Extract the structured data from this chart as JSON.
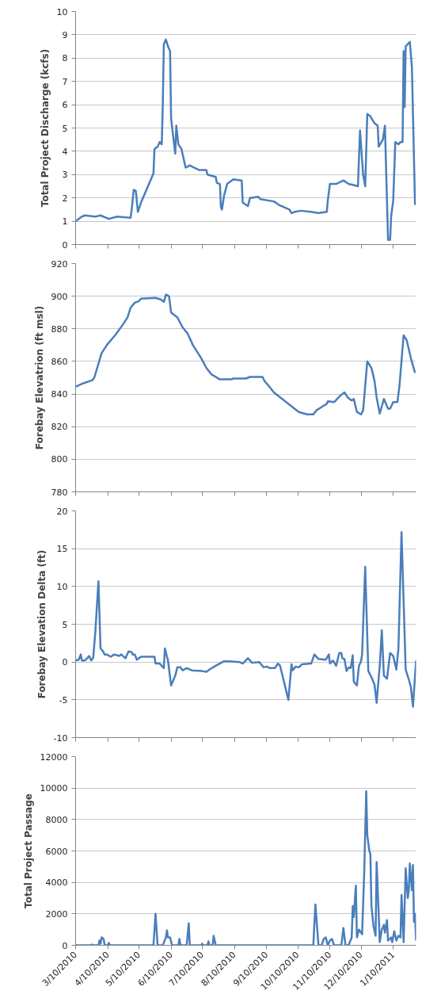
{
  "chart_data": [
    {
      "type": "line",
      "ylabel": "Total Project Discharge (kcfs)",
      "xlim": [
        "2010-03-10",
        "2011-02-01"
      ],
      "ylim": [
        0,
        10
      ],
      "yticks": [
        0,
        1,
        2,
        3,
        4,
        5,
        6,
        7,
        8,
        9,
        10
      ],
      "xticks": [
        {
          "value": "2010-03-10",
          "label": null
        },
        {
          "value": "2010-04-10",
          "label": null
        },
        {
          "value": "2010-05-10",
          "label": null
        },
        {
          "value": "2010-06-10",
          "label": null
        },
        {
          "value": "2010-07-10",
          "label": null
        },
        {
          "value": "2010-08-10",
          "label": null
        },
        {
          "value": "2010-09-10",
          "label": null
        },
        {
          "value": "2010-10-10",
          "label": null
        },
        {
          "value": "2010-11-10",
          "label": null
        },
        {
          "value": "2010-12-10",
          "label": null
        },
        {
          "value": "2011-01-10",
          "label": null
        }
      ],
      "tick_labels": "y",
      "grid": "y",
      "marker": "none",
      "line_style": "solid",
      "series": [
        {
          "color": "#4a7ebb",
          "x": [
            "2010-03-10",
            "2010-03-16",
            "2010-03-19",
            "2010-03-29",
            "2010-04-03",
            "2010-04-11",
            "2010-04-19",
            "2010-05-02",
            "2010-05-03",
            "2010-05-05",
            "2010-05-07",
            "2010-05-09",
            "2010-05-12",
            "2010-05-24",
            "2010-05-25",
            "2010-05-28",
            "2010-05-30",
            "2010-06-01",
            "2010-06-02",
            "2010-06-03",
            "2010-06-05",
            "2010-06-07",
            "2010-06-09",
            "2010-06-10",
            "2010-06-14",
            "2010-06-15",
            "2010-06-17",
            "2010-06-20",
            "2010-06-24",
            "2010-06-28",
            "2010-07-02",
            "2010-07-07",
            "2010-07-14",
            "2010-07-15",
            "2010-07-23",
            "2010-07-24",
            "2010-07-27",
            "2010-07-28",
            "2010-07-29",
            "2010-07-31",
            "2010-08-03",
            "2010-08-06",
            "2010-08-09",
            "2010-08-17",
            "2010-08-18",
            "2010-08-23",
            "2010-08-25",
            "2010-09-02",
            "2010-09-04",
            "2010-09-17",
            "2010-09-22",
            "2010-10-02",
            "2010-10-04",
            "2010-10-07",
            "2010-10-13",
            "2010-10-23",
            "2010-10-30",
            "2010-11-07",
            "2010-11-08",
            "2010-11-10",
            "2010-11-11",
            "2010-11-16",
            "2010-11-23",
            "2010-11-28",
            "2010-12-03",
            "2010-12-07",
            "2010-12-09",
            "2010-12-12",
            "2010-12-14",
            "2010-12-16",
            "2010-12-19",
            "2010-12-23",
            "2010-12-26",
            "2010-12-27",
            "2010-12-31",
            "2011-01-02",
            "2011-01-05",
            "2011-01-07",
            "2011-01-08",
            "2011-01-10",
            "2011-01-12",
            "2011-01-15",
            "2011-01-17",
            "2011-01-19",
            "2011-01-20",
            "2011-01-21",
            "2011-01-22",
            "2011-01-26",
            "2011-01-28",
            "2011-01-31"
          ],
          "values": [
            1.0,
            1.2,
            1.25,
            1.2,
            1.25,
            1.1,
            1.2,
            1.15,
            1.5,
            2.35,
            2.3,
            1.4,
            1.8,
            3.05,
            4.1,
            4.2,
            4.4,
            4.3,
            6.0,
            8.6,
            8.8,
            8.5,
            8.3,
            5.4,
            3.9,
            5.1,
            4.3,
            4.1,
            3.3,
            3.4,
            3.3,
            3.2,
            3.2,
            3.0,
            2.9,
            2.65,
            2.6,
            1.6,
            1.5,
            2.1,
            2.6,
            2.7,
            2.8,
            2.75,
            1.8,
            1.65,
            2.0,
            2.05,
            1.95,
            1.85,
            1.7,
            1.5,
            1.35,
            1.4,
            1.45,
            1.4,
            1.35,
            1.4,
            1.9,
            2.6,
            2.6,
            2.6,
            2.75,
            2.6,
            2.55,
            2.5,
            4.9,
            3.0,
            2.5,
            5.6,
            5.5,
            5.2,
            5.1,
            4.2,
            4.5,
            5.1,
            0.2,
            0.2,
            1.2,
            1.9,
            4.4,
            4.3,
            4.4,
            4.4,
            8.3,
            5.9,
            8.5,
            8.7,
            7.6,
            1.7
          ]
        }
      ]
    },
    {
      "type": "line",
      "ylabel": "Forebay Elevatrion (ft msl)",
      "xlim": [
        "2010-03-10",
        "2011-02-01"
      ],
      "ylim": [
        780,
        920
      ],
      "yticks": [
        780,
        800,
        820,
        840,
        860,
        880,
        900,
        920
      ],
      "xticks": [
        {
          "value": "2010-03-10",
          "label": null
        },
        {
          "value": "2010-04-10",
          "label": null
        },
        {
          "value": "2010-05-10",
          "label": null
        },
        {
          "value": "2010-06-10",
          "label": null
        },
        {
          "value": "2010-07-10",
          "label": null
        },
        {
          "value": "2010-08-10",
          "label": null
        },
        {
          "value": "2010-09-10",
          "label": null
        },
        {
          "value": "2010-10-10",
          "label": null
        },
        {
          "value": "2010-11-10",
          "label": null
        },
        {
          "value": "2010-12-10",
          "label": null
        },
        {
          "value": "2011-01-10",
          "label": null
        }
      ],
      "tick_labels": "y",
      "grid": "y",
      "marker": "none",
      "line_style": "solid",
      "series": [
        {
          "color": "#4a7ebb",
          "x": [
            "2010-03-10",
            "2010-03-17",
            "2010-03-26",
            "2010-03-28",
            "2010-04-04",
            "2010-04-09",
            "2010-04-17",
            "2010-04-25",
            "2010-04-29",
            "2010-05-02",
            "2010-05-06",
            "2010-05-10",
            "2010-05-12",
            "2010-05-26",
            "2010-05-31",
            "2010-06-03",
            "2010-06-05",
            "2010-06-08",
            "2010-06-10",
            "2010-06-16",
            "2010-06-21",
            "2010-06-26",
            "2010-07-01",
            "2010-07-09",
            "2010-07-14",
            "2010-07-19",
            "2010-07-27",
            "2010-08-07",
            "2010-08-09",
            "2010-08-21",
            "2010-08-25",
            "2010-09-06",
            "2010-09-08",
            "2010-09-12",
            "2010-09-17",
            "2010-09-25",
            "2010-10-03",
            "2010-10-11",
            "2010-10-19",
            "2010-10-25",
            "2010-10-28",
            "2010-11-02",
            "2010-11-07",
            "2010-11-08",
            "2010-11-14",
            "2010-11-20",
            "2010-11-24",
            "2010-11-27",
            "2010-12-01",
            "2010-12-03",
            "2010-12-06",
            "2010-12-10",
            "2010-12-12",
            "2010-12-16",
            "2010-12-20",
            "2010-12-23",
            "2010-12-25",
            "2010-12-28",
            "2011-01-01",
            "2011-01-05",
            "2011-01-07",
            "2011-01-10",
            "2011-01-14",
            "2011-01-16",
            "2011-01-20",
            "2011-01-23",
            "2011-01-27",
            "2011-01-31"
          ],
          "values": [
            844.5,
            846.5,
            848.5,
            850,
            865,
            870,
            876,
            883,
            887,
            893,
            896,
            897,
            898.5,
            899,
            898,
            896.5,
            901,
            900,
            890,
            887,
            881,
            877,
            870,
            862,
            856,
            852,
            849,
            849,
            849.5,
            849.5,
            850.5,
            850.5,
            848,
            845,
            841,
            837,
            833,
            829,
            827.5,
            827.5,
            830,
            832,
            834,
            835.5,
            835,
            839,
            841,
            838,
            836,
            837,
            829,
            827.5,
            830,
            860,
            856,
            848,
            838,
            828,
            837,
            831,
            831,
            835,
            835,
            845,
            876,
            873,
            862,
            853
          ]
        }
      ]
    },
    {
      "type": "line",
      "ylabel": "Forebay Elevation Delta (ft)",
      "xlim": [
        "2010-03-10",
        "2011-02-01"
      ],
      "ylim": [
        -10,
        20
      ],
      "yticks": [
        -10,
        -5,
        0,
        5,
        10,
        15,
        20
      ],
      "xticks": [
        {
          "value": "2010-03-10",
          "label": null
        },
        {
          "value": "2010-04-10",
          "label": null
        },
        {
          "value": "2010-05-10",
          "label": null
        },
        {
          "value": "2010-06-10",
          "label": null
        },
        {
          "value": "2010-07-10",
          "label": null
        },
        {
          "value": "2010-08-10",
          "label": null
        },
        {
          "value": "2010-09-10",
          "label": null
        },
        {
          "value": "2010-10-10",
          "label": null
        },
        {
          "value": "2010-11-10",
          "label": null
        },
        {
          "value": "2010-12-10",
          "label": null
        },
        {
          "value": "2011-01-10",
          "label": null
        }
      ],
      "tick_labels": "y",
      "grid": "y",
      "marker": "none",
      "line_style": "solid",
      "series": [
        {
          "color": "#4a7ebb",
          "x": [
            "2010-03-10",
            "2010-03-13",
            "2010-03-15",
            "2010-03-16",
            "2010-03-19",
            "2010-03-23",
            "2010-03-25",
            "2010-03-27",
            "2010-03-29",
            "2010-04-01",
            "2010-04-03",
            "2010-04-05",
            "2010-04-07",
            "2010-04-09",
            "2010-04-13",
            "2010-04-16",
            "2010-04-21",
            "2010-04-23",
            "2010-04-27",
            "2010-04-30",
            "2010-05-03",
            "2010-05-04",
            "2010-05-06",
            "2010-05-08",
            "2010-05-12",
            "2010-05-25",
            "2010-05-26",
            "2010-05-30",
            "2010-06-03",
            "2010-06-04",
            "2010-06-07",
            "2010-06-10",
            "2010-06-14",
            "2010-06-16",
            "2010-06-19",
            "2010-06-21",
            "2010-06-25",
            "2010-06-30",
            "2010-07-10",
            "2010-07-14",
            "2010-07-18",
            "2010-07-23",
            "2010-07-31",
            "2010-08-05",
            "2010-08-15",
            "2010-08-18",
            "2010-08-23",
            "2010-08-27",
            "2010-09-03",
            "2010-09-07",
            "2010-09-10",
            "2010-09-13",
            "2010-09-18",
            "2010-09-21",
            "2010-09-23",
            "2010-10-01",
            "2010-10-04",
            "2010-10-05",
            "2010-10-08",
            "2010-10-11",
            "2010-10-14",
            "2010-10-23",
            "2010-10-26",
            "2010-10-30",
            "2010-11-06",
            "2010-11-09",
            "2010-11-10",
            "2010-11-13",
            "2010-11-16",
            "2010-11-19",
            "2010-11-21",
            "2010-11-22",
            "2010-11-24",
            "2010-11-26",
            "2010-11-28",
            "2010-11-30",
            "2010-12-02",
            "2010-12-03",
            "2010-12-06",
            "2010-12-08",
            "2010-12-10",
            "2010-12-11",
            "2010-12-14",
            "2010-12-17",
            "2010-12-20",
            "2010-12-23",
            "2010-12-25",
            "2010-12-28",
            "2010-12-30",
            "2011-01-01",
            "2011-01-04",
            "2011-01-07",
            "2011-01-10",
            "2011-01-13",
            "2011-01-15",
            "2011-01-18",
            "2011-01-22",
            "2011-01-25",
            "2011-01-27",
            "2011-01-29",
            "2011-02-01"
          ],
          "values": [
            0.2,
            0.3,
            1.0,
            0.2,
            0.2,
            0.8,
            0.2,
            0.6,
            4,
            10.7,
            1.8,
            1.5,
            1.0,
            1.0,
            0.7,
            1.0,
            0.8,
            1.0,
            0.5,
            1.4,
            1.3,
            1.0,
            1.0,
            0.3,
            0.7,
            0.7,
            -0.2,
            -0.2,
            -0.8,
            1.8,
            0.2,
            -3.1,
            -1.8,
            -0.7,
            -0.7,
            -1.1,
            -0.8,
            -1.1,
            -1.2,
            -1.3,
            -0.9,
            -0.5,
            0.1,
            0.1,
            0.0,
            -0.2,
            0.5,
            -0.1,
            0.0,
            -0.7,
            -0.6,
            -0.8,
            -0.8,
            -0.2,
            -0.5,
            -5.0,
            -0.3,
            -1.1,
            -0.6,
            -0.7,
            -0.3,
            -0.2,
            1.0,
            0.4,
            0.3,
            1.0,
            -0.2,
            0.2,
            -0.5,
            1.2,
            1.2,
            0.5,
            0.4,
            -1.2,
            -0.7,
            -0.8,
            0.9,
            -2.6,
            -3.1,
            -0.5,
            0.1,
            1,
            12.6,
            -1.2,
            -2.0,
            -3.0,
            -5.4,
            -0.5,
            4.2,
            -1.8,
            -2.2,
            1.2,
            0.8,
            -1.0,
            1.8,
            17.2,
            -1.0,
            -2.3,
            -3.3,
            -5.9,
            0.2
          ]
        }
      ]
    },
    {
      "type": "line",
      "ylabel": "Total Project Passage",
      "xlim": [
        "2010-03-10",
        "2011-02-01"
      ],
      "ylim": [
        0,
        12000
      ],
      "yticks": [
        0,
        2000,
        4000,
        6000,
        8000,
        10000,
        12000
      ],
      "xticks": [
        {
          "value": "2010-03-10",
          "label": "3/10/2010"
        },
        {
          "value": "2010-04-10",
          "label": "4/10/2010"
        },
        {
          "value": "2010-05-10",
          "label": "5/10/2010"
        },
        {
          "value": "2010-06-10",
          "label": "6/10/2010"
        },
        {
          "value": "2010-07-10",
          "label": "7/10/2010"
        },
        {
          "value": "2010-08-10",
          "label": "8/10/2010"
        },
        {
          "value": "2010-09-10",
          "label": "9/10/2010"
        },
        {
          "value": "2010-10-10",
          "label": "10/10/2010"
        },
        {
          "value": "2010-11-10",
          "label": "11/10/2010"
        },
        {
          "value": "2010-12-10",
          "label": "12/10/2010"
        },
        {
          "value": "2011-01-10",
          "label": "1/10/2011"
        }
      ],
      "grid": "y",
      "marker": "none",
      "line_style": "solid",
      "series": [
        {
          "color": "#4a7ebb",
          "x": [
            "2010-03-10",
            "2010-03-25",
            "2010-03-26",
            "2010-03-27",
            "2010-04-01",
            "2010-04-02",
            "2010-04-03",
            "2010-04-04",
            "2010-04-06",
            "2010-04-07",
            "2010-04-10",
            "2010-04-11",
            "2010-04-12",
            "2010-05-24",
            "2010-05-26",
            "2010-05-28",
            "2010-06-02",
            "2010-06-05",
            "2010-06-06",
            "2010-06-07",
            "2010-06-09",
            "2010-06-11",
            "2010-06-17",
            "2010-06-18",
            "2010-06-19",
            "2010-06-25",
            "2010-06-27",
            "2010-06-28",
            "2010-07-09",
            "2010-07-10",
            "2010-07-11",
            "2010-07-15",
            "2010-07-16",
            "2010-07-17",
            "2010-07-20",
            "2010-07-21",
            "2010-07-23",
            "2010-10-25",
            "2010-10-27",
            "2010-10-30",
            "2010-11-02",
            "2010-11-04",
            "2010-11-06",
            "2010-11-08",
            "2010-11-10",
            "2010-11-12",
            "2010-11-14",
            "2010-11-21",
            "2010-11-23",
            "2010-11-25",
            "2010-11-28",
            "2010-12-01",
            "2010-12-02",
            "2010-12-03",
            "2010-12-05",
            "2010-12-06",
            "2010-12-08",
            "2010-12-11",
            "2010-12-13",
            "2010-12-15",
            "2010-12-16",
            "2010-12-18",
            "2010-12-19",
            "2010-12-20",
            "2010-12-22",
            "2010-12-24",
            "2010-12-25",
            "2010-12-27",
            "2010-12-28",
            "2010-12-30",
            "2011-01-01",
            "2011-01-02",
            "2011-01-04",
            "2011-01-05",
            "2011-01-08",
            "2011-01-09",
            "2011-01-11",
            "2011-01-13",
            "2011-01-15",
            "2011-01-17",
            "2011-01-18",
            "2011-01-20",
            "2011-01-22",
            "2011-01-24",
            "2011-01-25",
            "2011-01-26",
            "2011-01-28",
            "2011-01-29",
            "2011-01-30",
            "2011-01-31",
            "2011-02-01"
          ],
          "values": [
            0,
            0,
            50,
            0,
            0,
            300,
            100,
            500,
            400,
            0,
            0,
            150,
            0,
            0,
            2000,
            0,
            0,
            500,
            950,
            500,
            500,
            0,
            0,
            400,
            0,
            0,
            1400,
            0,
            0,
            100,
            0,
            0,
            250,
            0,
            0,
            600,
            0,
            0,
            2600,
            0,
            0,
            400,
            500,
            0,
            300,
            400,
            0,
            0,
            1100,
            0,
            0,
            500,
            2500,
            1800,
            3800,
            500,
            1000,
            700,
            4500,
            9800,
            7000,
            6000,
            5800,
            2500,
            1200,
            600,
            5300,
            2000,
            200,
            1000,
            1300,
            800,
            1600,
            300,
            500,
            200,
            900,
            300,
            600,
            500,
            3200,
            200,
            4900,
            3000,
            3500,
            5200,
            3500,
            5100,
            1500,
            2000,
            300
          ]
        }
      ]
    }
  ]
}
